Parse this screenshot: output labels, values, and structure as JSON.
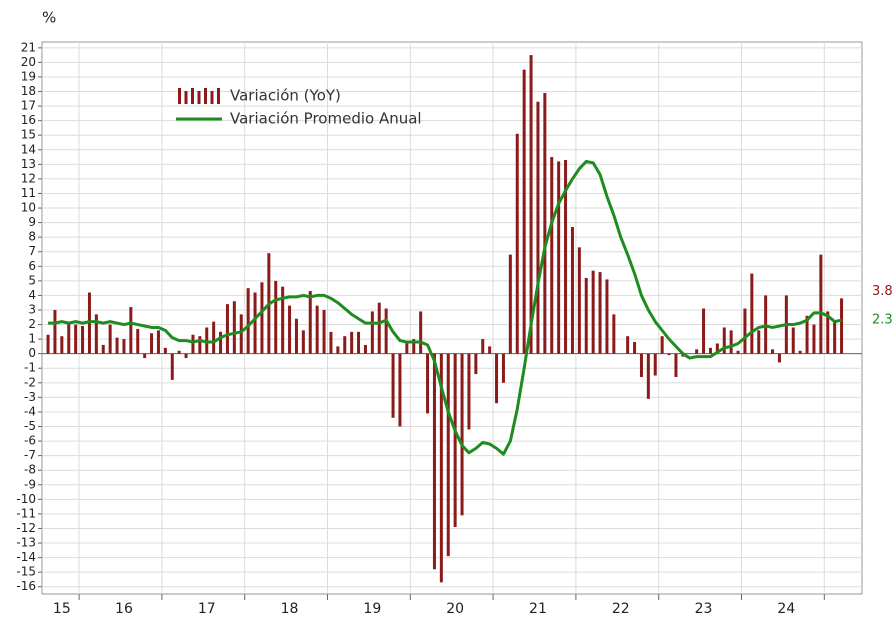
{
  "chart_data": {
    "type": "bar_line",
    "ylabel": "%",
    "categories": [
      null,
      null,
      "15",
      null,
      null,
      null,
      null,
      null,
      null,
      null,
      null,
      "16",
      null,
      null,
      null,
      null,
      null,
      null,
      null,
      null,
      null,
      null,
      null,
      "17",
      null,
      null,
      null,
      null,
      null,
      null,
      null,
      null,
      null,
      null,
      null,
      "18",
      null,
      null,
      null,
      null,
      null,
      null,
      null,
      null,
      null,
      null,
      null,
      "19",
      null,
      null,
      null,
      null,
      null,
      null,
      null,
      null,
      null,
      null,
      null,
      "20",
      null,
      null,
      null,
      null,
      null,
      null,
      null,
      null,
      null,
      null,
      null,
      "21",
      null,
      null,
      null,
      null,
      null,
      null,
      null,
      null,
      null,
      null,
      null,
      "22",
      null,
      null,
      null,
      null,
      null,
      null,
      null,
      null,
      null,
      null,
      null,
      "23",
      null,
      null,
      null,
      null,
      null,
      null,
      null,
      null,
      null,
      null,
      null,
      "24",
      null,
      null,
      null,
      null,
      null,
      null,
      null,
      null
    ],
    "series": [
      {
        "name": "Variación (YoY)",
        "kind": "bar",
        "color": "#8b1a1a",
        "values": [
          1.3,
          3.0,
          1.2,
          2.2,
          2.0,
          1.9,
          4.2,
          2.7,
          0.6,
          2.0,
          1.1,
          1.0,
          3.2,
          1.7,
          -0.3,
          1.4,
          1.6,
          0.4,
          -1.8,
          0.2,
          -0.3,
          1.3,
          1.2,
          1.8,
          2.2,
          1.5,
          3.4,
          3.6,
          2.7,
          4.5,
          4.2,
          4.9,
          6.9,
          5.0,
          4.6,
          3.3,
          2.4,
          1.6,
          4.3,
          3.3,
          3.0,
          1.5,
          0.5,
          1.2,
          1.5,
          1.5,
          0.6,
          2.9,
          3.5,
          3.1,
          -4.4,
          -5.0,
          0.8,
          1.0,
          2.9,
          -4.1,
          -14.8,
          -15.7,
          -13.9,
          -11.9,
          -11.1,
          -5.2,
          -1.4,
          1.0,
          0.5,
          -3.4,
          -2.0,
          6.8,
          15.1,
          19.5,
          20.5,
          17.3,
          17.9,
          13.5,
          13.2,
          13.3,
          8.7,
          7.3,
          5.2,
          5.7,
          5.6,
          5.1,
          2.7,
          0,
          1.2,
          0.8,
          -1.6,
          -3.1,
          -1.5,
          1.2,
          -0.1,
          -1.6,
          -0.2,
          0,
          0.3,
          3.1,
          0.4,
          0.7,
          1.8,
          1.6,
          0.2,
          3.1,
          5.5,
          1.6,
          4.0,
          0.3,
          -0.6,
          4.0,
          1.8,
          0.2,
          2.6,
          2.0,
          6.8,
          2.9,
          2.2,
          3.8
        ]
      },
      {
        "name": "Variación Promedio Anual",
        "kind": "line",
        "color": "#1e8c1e",
        "values": [
          2.1,
          2.1,
          2.2,
          2.1,
          2.2,
          2.1,
          2.2,
          2.2,
          2.1,
          2.2,
          2.1,
          2.0,
          2.1,
          2.0,
          1.9,
          1.8,
          1.8,
          1.6,
          1.1,
          0.9,
          0.9,
          0.8,
          0.9,
          0.8,
          0.8,
          1.1,
          1.3,
          1.4,
          1.5,
          1.9,
          2.4,
          2.9,
          3.4,
          3.7,
          3.8,
          3.9,
          3.9,
          4.0,
          3.9,
          4.0,
          4.0,
          3.8,
          3.5,
          3.1,
          2.7,
          2.4,
          2.1,
          2.1,
          2.1,
          2.3,
          1.5,
          0.9,
          0.8,
          0.8,
          0.8,
          0.6,
          -0.5,
          -2.3,
          -4.0,
          -5.3,
          -6.3,
          -6.8,
          -6.5,
          -6.1,
          -6.2,
          -6.5,
          -6.9,
          -6.0,
          -3.8,
          -1.0,
          2.0,
          4.8,
          7.3,
          9.0,
          10.3,
          11.2,
          12.0,
          12.7,
          13.2,
          13.1,
          12.3,
          10.8,
          9.5,
          8.0,
          6.8,
          5.5,
          4.0,
          3.0,
          2.2,
          1.6,
          1.0,
          0.5,
          0.0,
          -0.3,
          -0.2,
          -0.2,
          -0.2,
          0.1,
          0.4,
          0.5,
          0.7,
          1.1,
          1.5,
          1.8,
          1.9,
          1.8,
          1.9,
          2.0,
          2.0,
          2.1,
          2.3,
          2.8,
          2.8,
          2.6,
          2.2,
          2.3
        ]
      }
    ],
    "ylim": [
      -16.5,
      21.4
    ],
    "yticks": [
      -16,
      -15,
      -14,
      -13,
      -12,
      -11,
      -10,
      -9,
      -8,
      -7,
      -6,
      -5,
      -4,
      -3,
      -2,
      -1,
      0,
      1,
      2,
      3,
      4,
      5,
      6,
      7,
      8,
      9,
      10,
      11,
      12,
      13,
      14,
      15,
      16,
      17,
      18,
      19,
      20,
      21
    ],
    "grid": true,
    "legend": "upper left"
  }
}
